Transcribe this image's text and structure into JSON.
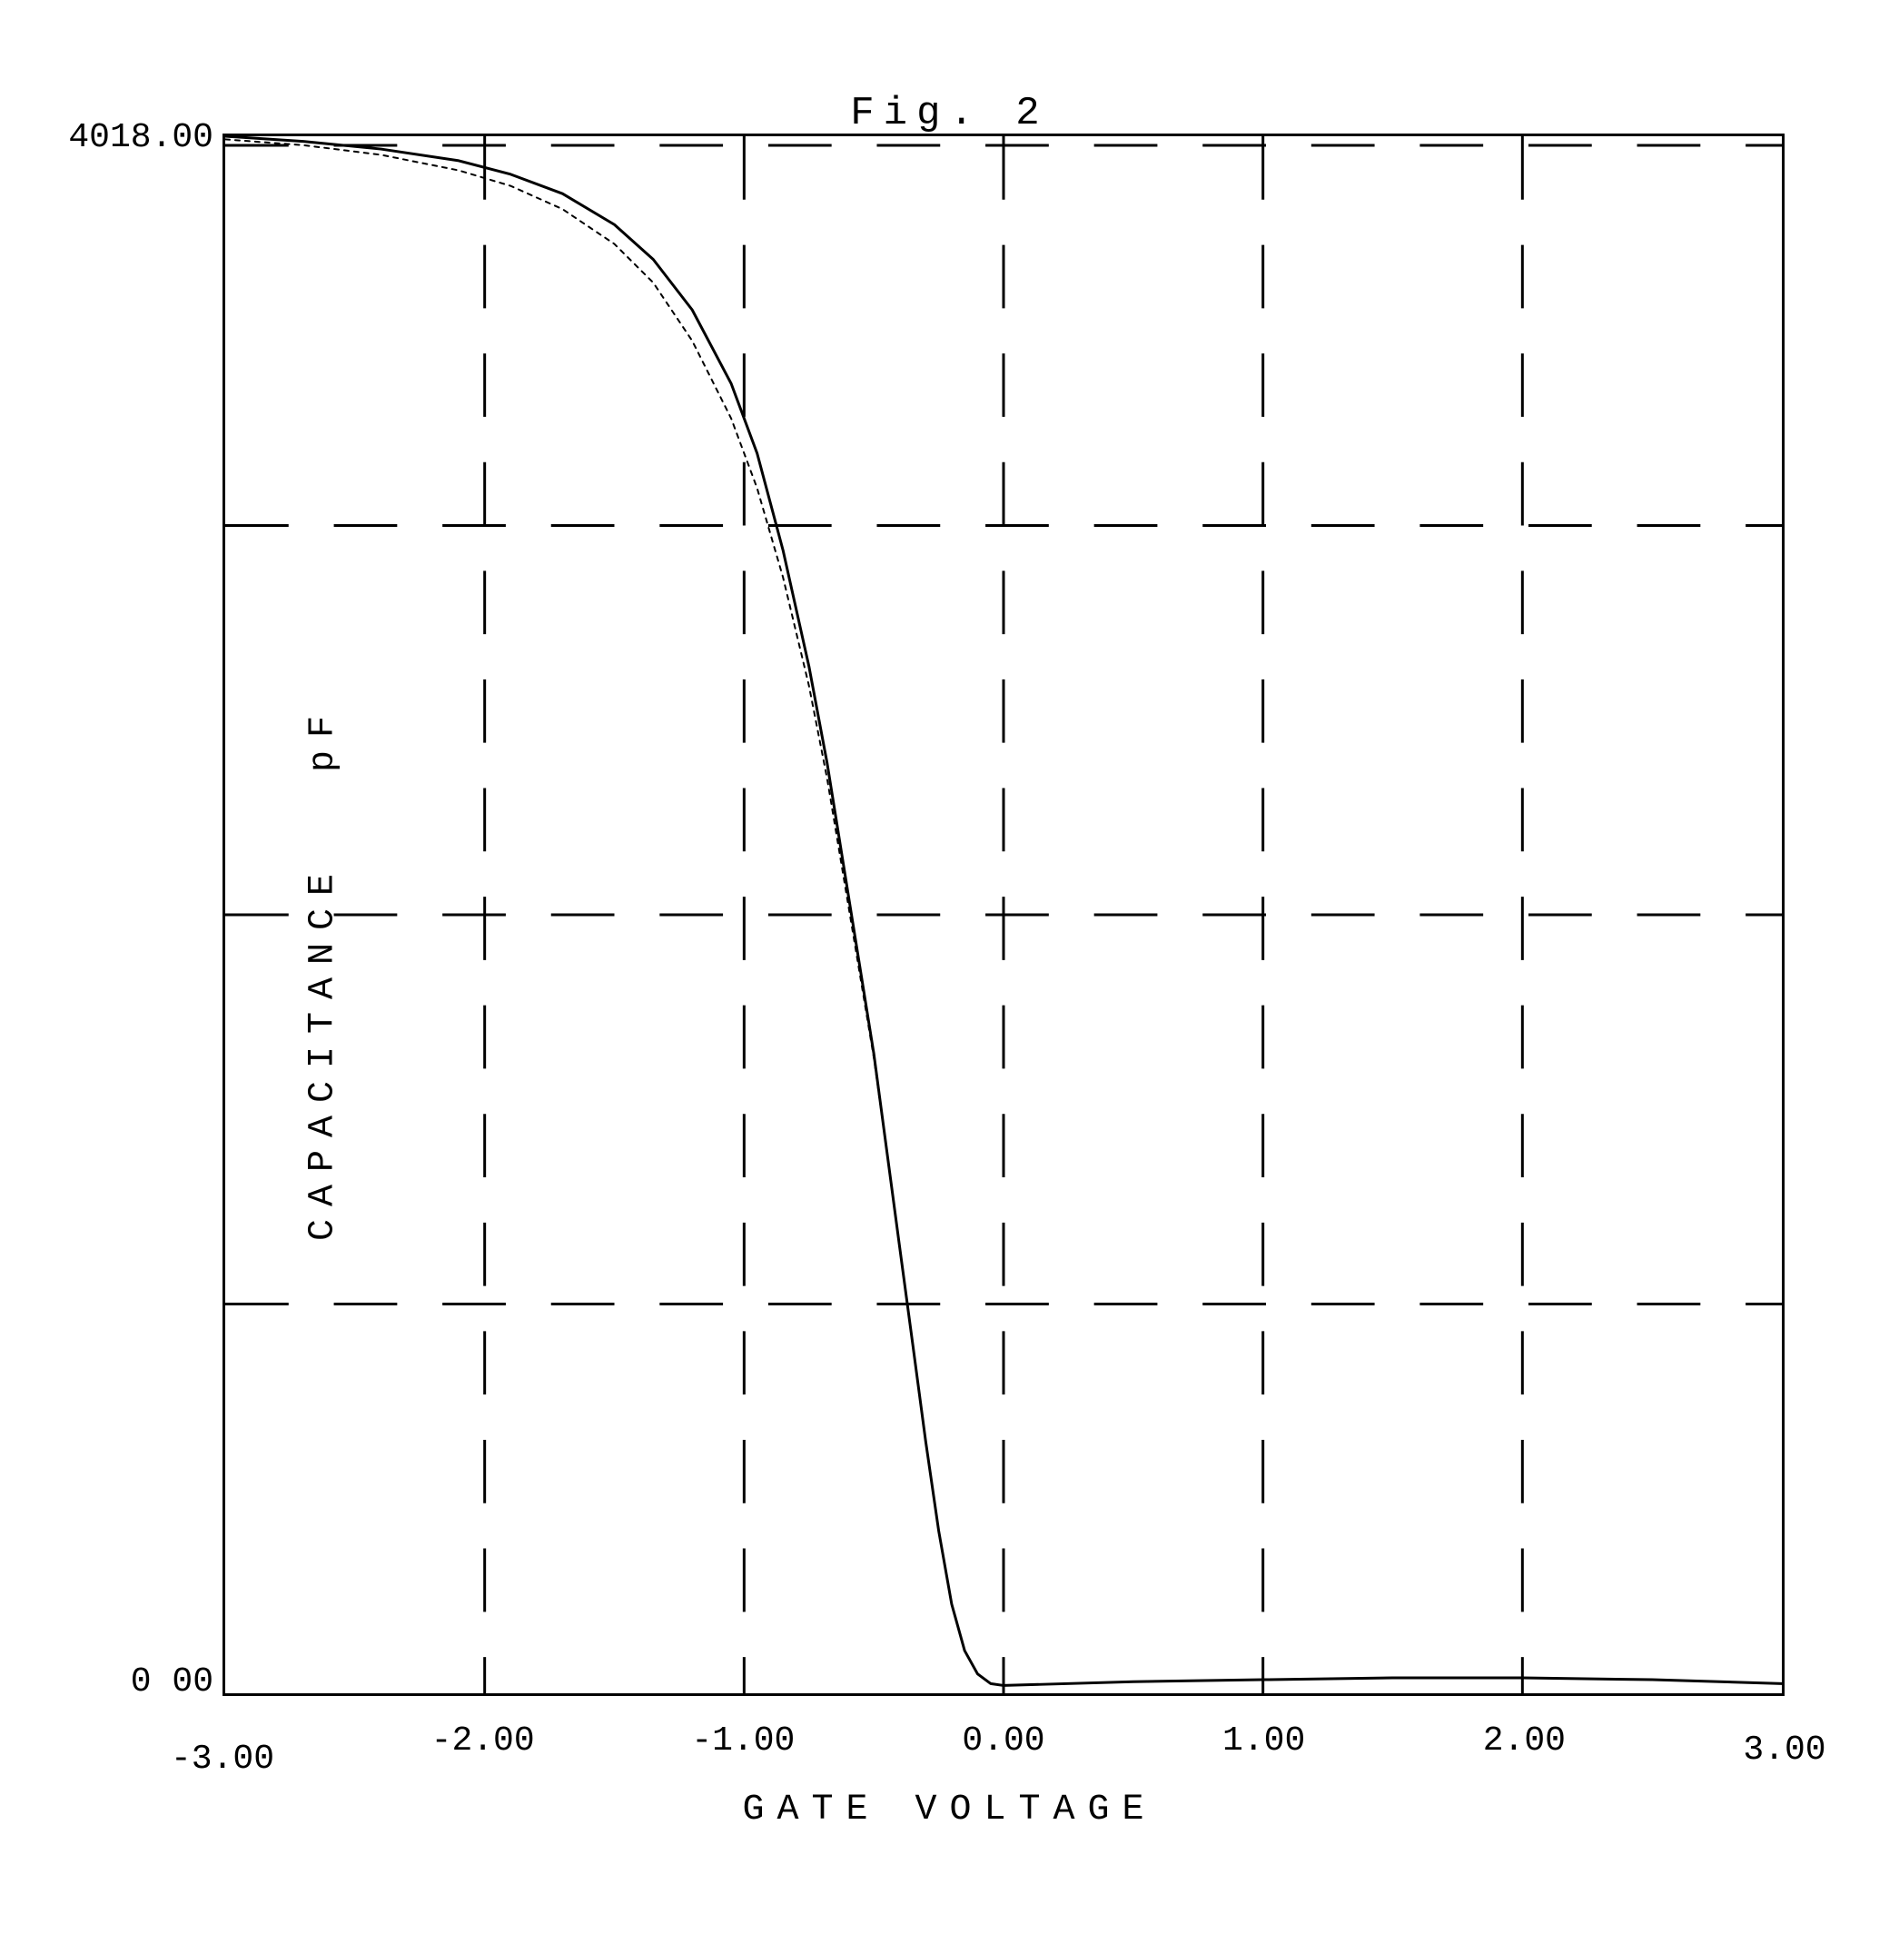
{
  "figure": {
    "title": "Fig. 2",
    "type": "line",
    "background_color": "#ffffff",
    "border_color": "#000000",
    "border_width": 3,
    "title_fontsize": 44,
    "label_fontsize": 40,
    "tick_fontsize": 38,
    "font_family": "Courier New",
    "x": {
      "label": "GATE VOLTAGE",
      "min": -3.0,
      "max": 3.0,
      "ticks": [
        "-3.00",
        "-2.00",
        "-1.00",
        "0.00",
        "1.00",
        "2.00",
        "3.00"
      ],
      "tick_values": [
        -3.0,
        -2.0,
        -1.0,
        0.0,
        1.0,
        2.0,
        3.0
      ],
      "grid_values": [
        -2.0,
        -1.0,
        0.0,
        1.0,
        2.0
      ]
    },
    "y": {
      "label": "CAPACITANCE",
      "unit": "pF",
      "min": 0.0,
      "max": 4018.0,
      "ticks": [
        "4018.00",
        "0 00"
      ],
      "tick_values": [
        4018.0,
        0.0
      ],
      "grid_values": [
        1004.5,
        2009.0,
        3013.5
      ]
    },
    "grid": {
      "color": "#000000",
      "dash": "70 50",
      "width": 3
    },
    "series": [
      {
        "name": "trace-1",
        "color": "#000000",
        "width": 3,
        "dash": "none",
        "points": [
          [
            -3.0,
            4018.0
          ],
          [
            -2.7,
            4005.0
          ],
          [
            -2.4,
            3985.0
          ],
          [
            -2.1,
            3955.0
          ],
          [
            -1.9,
            3920.0
          ],
          [
            -1.7,
            3870.0
          ],
          [
            -1.5,
            3790.0
          ],
          [
            -1.35,
            3700.0
          ],
          [
            -1.2,
            3570.0
          ],
          [
            -1.05,
            3380.0
          ],
          [
            -0.95,
            3200.0
          ],
          [
            -0.85,
            2950.0
          ],
          [
            -0.75,
            2650.0
          ],
          [
            -0.68,
            2400.0
          ],
          [
            -0.62,
            2150.0
          ],
          [
            -0.56,
            1900.0
          ],
          [
            -0.5,
            1650.0
          ],
          [
            -0.45,
            1400.0
          ],
          [
            -0.4,
            1150.0
          ],
          [
            -0.35,
            900.0
          ],
          [
            -0.3,
            650.0
          ],
          [
            -0.25,
            420.0
          ],
          [
            -0.2,
            230.0
          ],
          [
            -0.15,
            110.0
          ],
          [
            -0.1,
            50.0
          ],
          [
            -0.05,
            25.0
          ],
          [
            0.0,
            20.0
          ],
          [
            0.5,
            30.0
          ],
          [
            1.0,
            35.0
          ],
          [
            1.5,
            40.0
          ],
          [
            2.0,
            40.0
          ],
          [
            2.5,
            35.0
          ],
          [
            3.0,
            25.0
          ]
        ]
      },
      {
        "name": "trace-2",
        "color": "#000000",
        "width": 2,
        "dash": "5 6",
        "points": [
          [
            -3.0,
            4010.0
          ],
          [
            -2.7,
            3995.0
          ],
          [
            -2.4,
            3970.0
          ],
          [
            -2.1,
            3930.0
          ],
          [
            -1.9,
            3890.0
          ],
          [
            -1.7,
            3830.0
          ],
          [
            -1.5,
            3740.0
          ],
          [
            -1.35,
            3640.0
          ],
          [
            -1.2,
            3490.0
          ],
          [
            -1.05,
            3290.0
          ],
          [
            -0.95,
            3110.0
          ],
          [
            -0.85,
            2880.0
          ],
          [
            -0.75,
            2600.0
          ],
          [
            -0.68,
            2360.0
          ],
          [
            -0.62,
            2120.0
          ],
          [
            -0.56,
            1880.0
          ],
          [
            -0.5,
            1640.0
          ],
          [
            -0.45,
            1400.0
          ],
          [
            -0.4,
            1150.0
          ],
          [
            -0.35,
            900.0
          ],
          [
            -0.3,
            650.0
          ],
          [
            -0.25,
            420.0
          ],
          [
            -0.2,
            230.0
          ],
          [
            -0.15,
            110.0
          ],
          [
            -0.1,
            50.0
          ],
          [
            -0.05,
            25.0
          ],
          [
            0.0,
            20.0
          ],
          [
            0.5,
            30.0
          ],
          [
            1.0,
            35.0
          ],
          [
            1.5,
            40.0
          ],
          [
            2.0,
            40.0
          ],
          [
            2.5,
            35.0
          ],
          [
            3.0,
            25.0
          ]
        ]
      }
    ]
  }
}
